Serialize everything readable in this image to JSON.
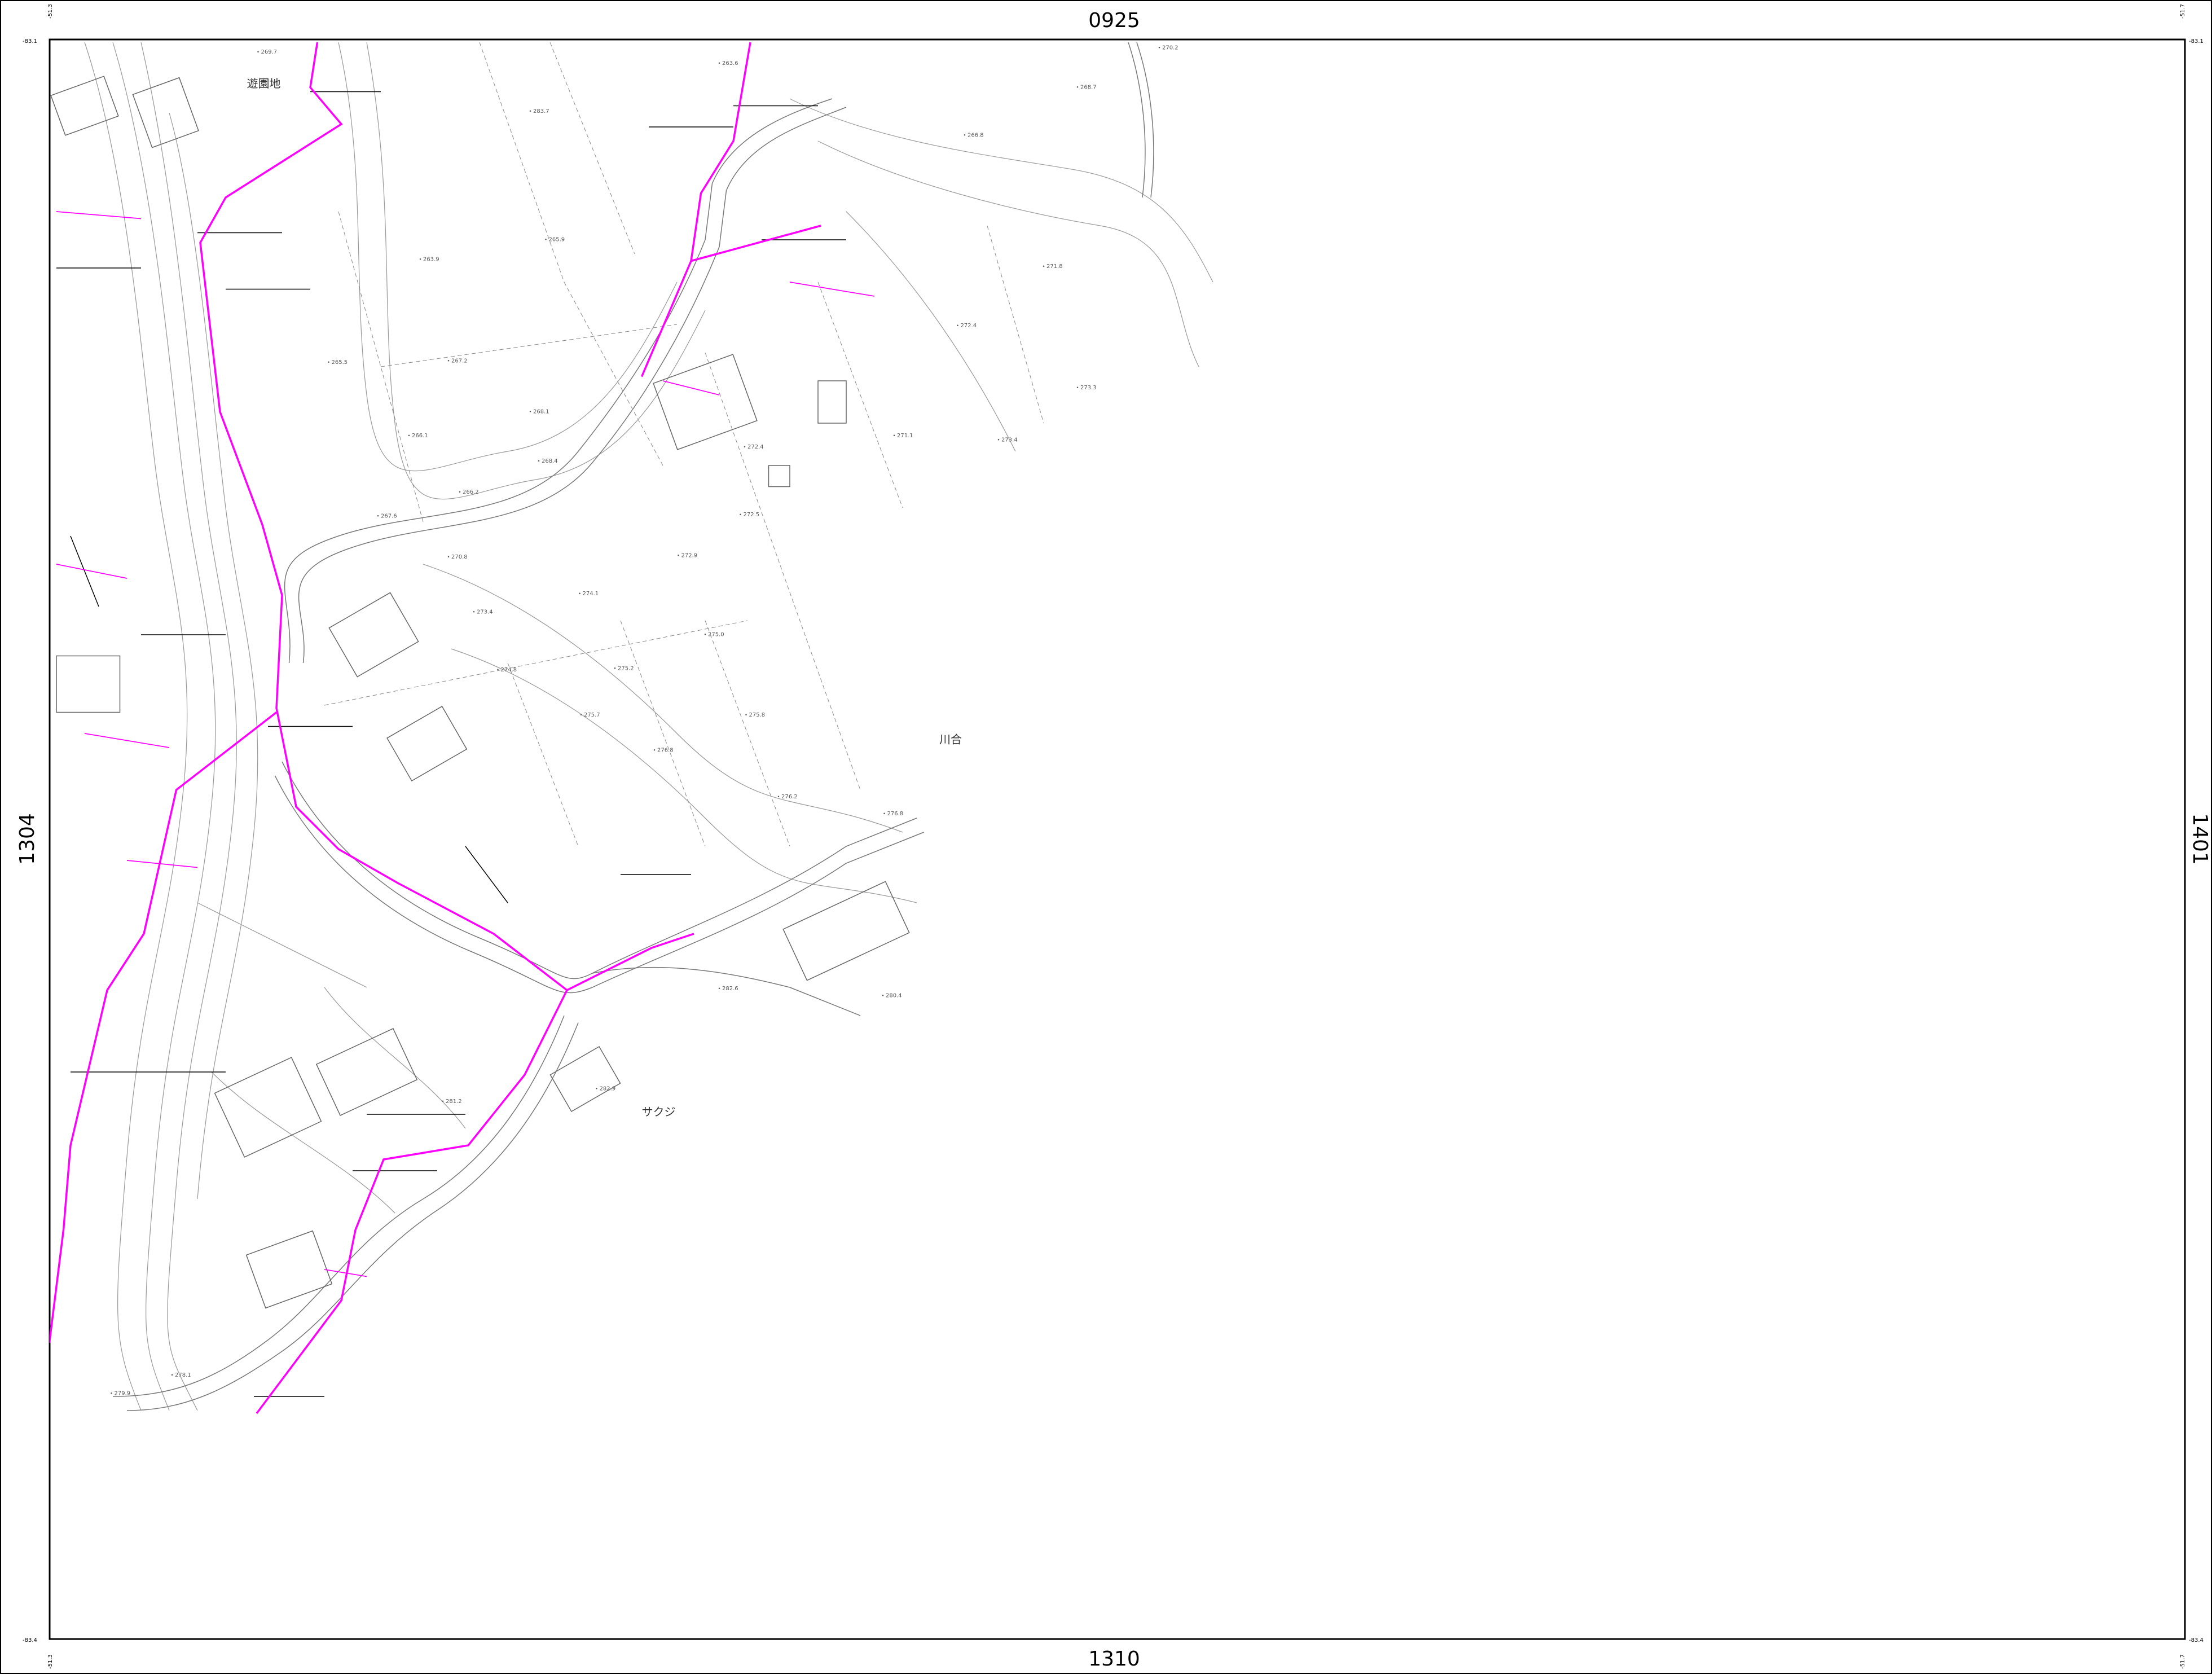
{
  "sheet": {
    "top": "0925",
    "bottom": "1310",
    "left": "1304",
    "right": "1401"
  },
  "corners": {
    "top_left": [
      "-83.1",
      "-51.3"
    ],
    "top_right": [
      "-83.1",
      "-51.7"
    ],
    "bottom_left": [
      "-83.4",
      "-51.3"
    ],
    "bottom_right": [
      "-83.4",
      "-51.7"
    ]
  },
  "places": [
    "遊園地",
    "川合",
    "サクジ"
  ],
  "elevations": [
    "269.7",
    "283.7",
    "263.6",
    "268.7",
    "270.2",
    "266.8",
    "271.8",
    "272.4",
    "273.3",
    "273.4",
    "271.1",
    "272.4",
    "272.5",
    "272.9",
    "274.1",
    "273.4",
    "275.0",
    "275.8",
    "276.2",
    "276.8",
    "274.8",
    "275.2",
    "275.7",
    "276.8",
    "280.4",
    "282.6",
    "282.9",
    "281.2",
    "278.1",
    "279.9",
    "263.9",
    "265.9",
    "265.5",
    "267.2",
    "268.1",
    "266.1",
    "268.4",
    "266.2",
    "267.6",
    "270.8"
  ]
}
